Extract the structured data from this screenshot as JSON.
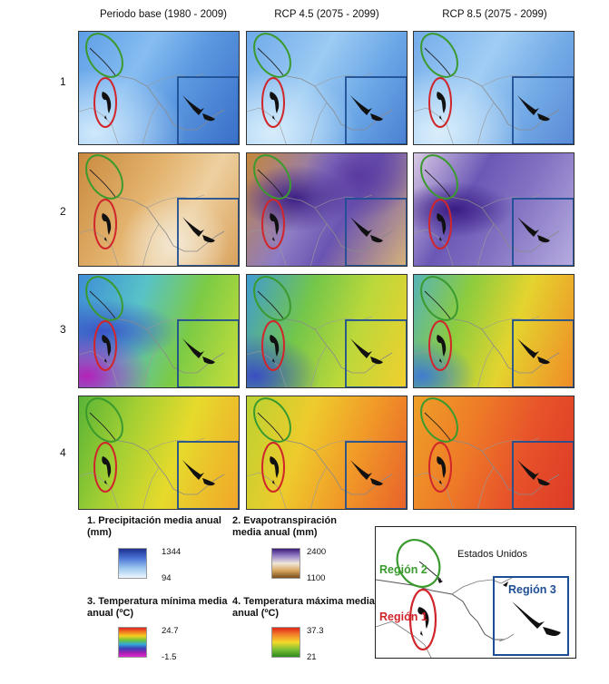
{
  "columns": [
    "Periodo base (1980 - 2009)",
    "RCP 4.5 (2075 - 2099)",
    "RCP 8.5 (2075 - 2099)"
  ],
  "rows": [
    "1",
    "2",
    "3",
    "4"
  ],
  "tile_styles": [
    [
      "precip-base",
      "precip-45",
      "precip-85"
    ],
    [
      "evap-base",
      "evap-45",
      "evap-85"
    ],
    [
      "tmin-base",
      "tmin-45",
      "tmin-85"
    ],
    [
      "tmax-base",
      "tmax-45",
      "tmax-85"
    ]
  ],
  "legends": [
    {
      "title": "1. Precipitación media anual (mm)",
      "max": "1344",
      "min": "94"
    },
    {
      "title": "2. Evapotranspiración media anual (mm)",
      "max": "2400",
      "min": "1100"
    },
    {
      "title": "3. Temperatura mínima media anual (ºC)",
      "max": "24.7",
      "min": "-1.5"
    },
    {
      "title": "4. Temperatura máxima media anual (ºC)",
      "max": "37.3",
      "min": "21"
    }
  ],
  "inset": {
    "country_label": "Estados Unidos",
    "region1": "Región 1",
    "region2": "Región 2",
    "region3": "Región 3"
  },
  "colors": {
    "region1": "#d0262b",
    "region2": "#3a9a2e",
    "region3": "#1d4e93"
  }
}
